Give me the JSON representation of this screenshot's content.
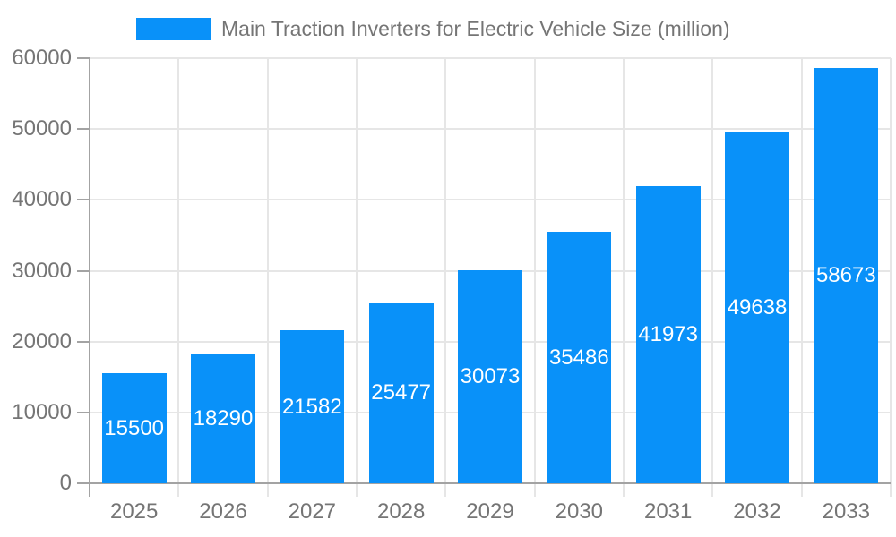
{
  "chart_data": {
    "type": "bar",
    "title": "Main Traction Inverters for Electric Vehicle Size (million)",
    "legend_entries": [
      {
        "label": "Main Traction Inverters for Electric Vehicle Size (million)",
        "color": "#0991f9"
      }
    ],
    "legend_position": "top",
    "categories": [
      "2025",
      "2026",
      "2027",
      "2028",
      "2029",
      "2030",
      "2031",
      "2032",
      "2033"
    ],
    "values": [
      15500,
      18290,
      21582,
      25477,
      30073,
      35486,
      41973,
      49638,
      58673
    ],
    "xlabel": "",
    "ylabel": "",
    "ylim": [
      0,
      60000
    ],
    "ytick_step": 10000,
    "ytick_labels": [
      "0",
      "10000",
      "20000",
      "30000",
      "40000",
      "50000",
      "60000"
    ],
    "grid": true,
    "value_labels_shown": true,
    "colors": {
      "bar": "#0991f9",
      "value_label": "#ffffff",
      "axis_line": "#a3a3a3",
      "gridline": "#e6e6e6",
      "tick_label": "#757575",
      "legend_text": "#757575",
      "background": "#ffffff"
    }
  }
}
